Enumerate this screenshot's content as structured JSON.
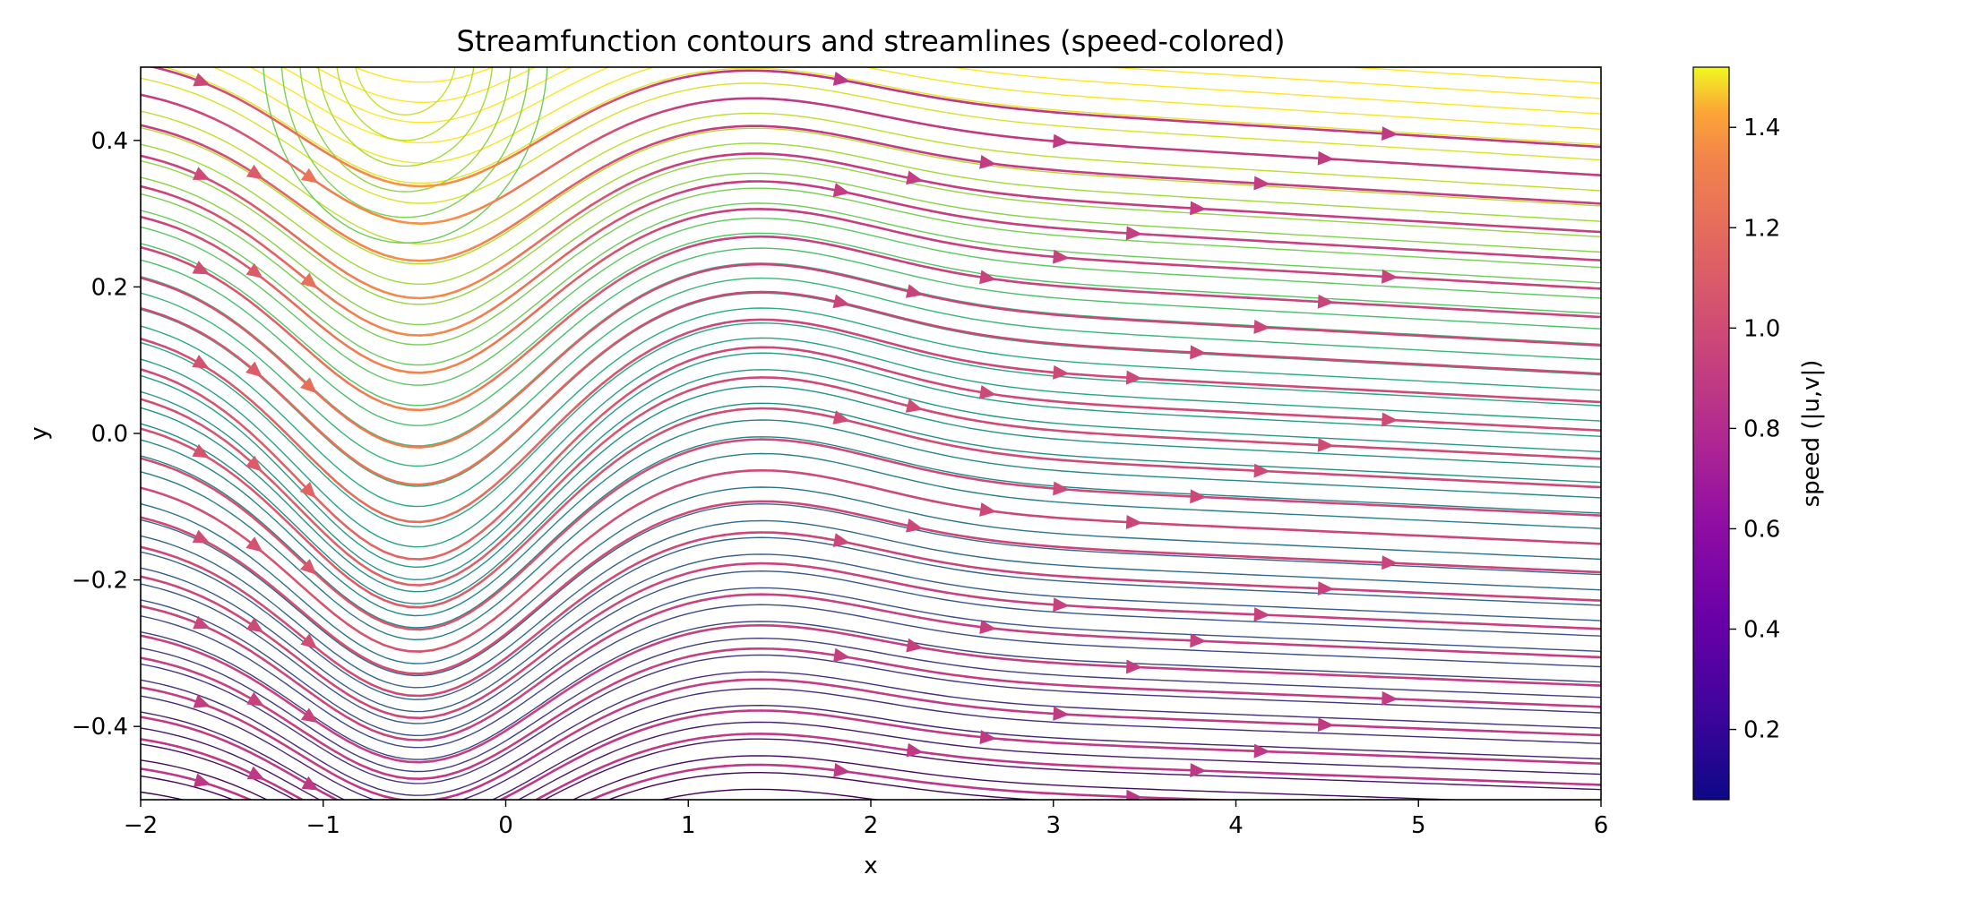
{
  "chart_data": {
    "type": "streamplot",
    "title": "Streamfunction contours and streamlines (speed-colored)",
    "xlabel": "x",
    "ylabel": "y",
    "xlim": [
      -2,
      6
    ],
    "ylim": [
      -0.5,
      0.5
    ],
    "xticks": [
      -2,
      -1,
      0,
      1,
      2,
      3,
      4,
      5,
      6
    ],
    "yticks": [
      -0.4,
      -0.2,
      0.0,
      0.2,
      0.4
    ],
    "xtick_labels": [
      "−2",
      "−1",
      "0",
      "1",
      "2",
      "3",
      "4",
      "5",
      "6"
    ],
    "ytick_labels": [
      "−0.4",
      "−0.2",
      "0.0",
      "0.2",
      "0.4"
    ],
    "grid": false,
    "colormap": "plasma",
    "colorbar": {
      "label": "speed (|u,v|)",
      "range": [
        0.06,
        1.52
      ],
      "ticks": [
        0.2,
        0.4,
        0.6,
        0.8,
        1.0,
        1.2,
        1.4
      ],
      "tick_labels": [
        "0.2",
        "0.4",
        "0.6",
        "0.8",
        "1.0",
        "1.2",
        "1.4"
      ]
    },
    "contour_colormap": "viridis",
    "contour_levels": 60,
    "flow": {
      "trough_center_x": -0.5,
      "trough_depth": 0.26,
      "trough_width": 0.9,
      "downstream_slope": -0.012,
      "vortex_x": -0.55,
      "vortex_y": 0.48
    },
    "streamline_seeds_y": [
      -0.48,
      -0.44,
      -0.41,
      -0.37,
      -0.33,
      -0.3,
      -0.26,
      -0.22,
      -0.18,
      -0.14,
      -0.1,
      -0.06,
      -0.02,
      0.02,
      0.06,
      0.1,
      0.14,
      0.18,
      0.22,
      0.26,
      0.3,
      0.34,
      0.38,
      0.42,
      0.46
    ]
  }
}
